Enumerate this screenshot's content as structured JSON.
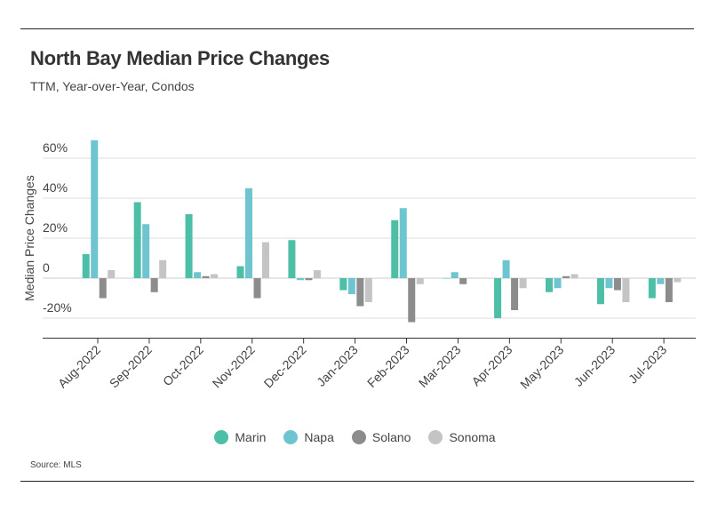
{
  "header": {
    "title": "North Bay Median Price Changes",
    "subtitle": "TTM, Year-over-Year, Condos"
  },
  "source": "Source: MLS",
  "colors": {
    "Marin": "#4dbfa6",
    "Napa": "#6ec4cf",
    "Solano": "#8c8c8c",
    "Sonoma": "#c4c4c4"
  },
  "chart_data": {
    "type": "bar",
    "ylabel": "Median Price Changes",
    "ylim": [
      -30,
      70
    ],
    "yticks": [
      -20,
      0,
      20,
      40,
      60
    ],
    "ytick_labels": [
      "-20%",
      "0",
      "20%",
      "40%",
      "60%"
    ],
    "grid": true,
    "legend_position": "bottom",
    "categories": [
      "Aug-2022",
      "Sep-2022",
      "Oct-2022",
      "Nov-2022",
      "Dec-2022",
      "Jan-2023",
      "Feb-2023",
      "Mar-2023",
      "Apr-2023",
      "May-2023",
      "Jun-2023",
      "Jul-2023"
    ],
    "series": [
      {
        "name": "Marin",
        "values": [
          12,
          38,
          32,
          6,
          19,
          -6,
          29,
          0,
          -20,
          -7,
          -13,
          -10
        ]
      },
      {
        "name": "Napa",
        "values": [
          69,
          27,
          3,
          45,
          -1,
          -8,
          35,
          3,
          9,
          -5,
          -5,
          -3
        ]
      },
      {
        "name": "Solano",
        "values": [
          -10,
          -7,
          1,
          -10,
          -1,
          -14,
          -22,
          -3,
          -16,
          1,
          -6,
          -12
        ]
      },
      {
        "name": "Sonoma",
        "values": [
          4,
          9,
          2,
          18,
          4,
          -12,
          -3,
          0,
          -5,
          2,
          -12,
          -2
        ]
      }
    ]
  }
}
